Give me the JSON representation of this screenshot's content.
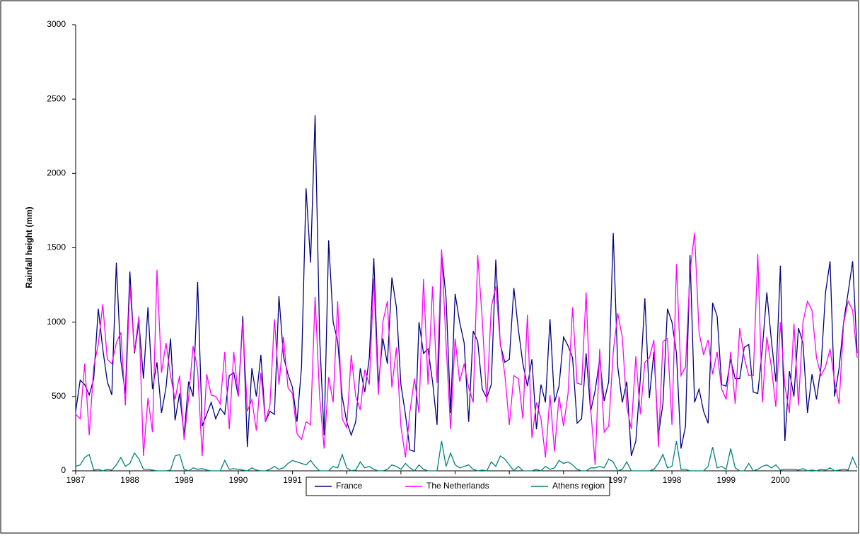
{
  "chart_data": {
    "type": "line",
    "y_label": "Rainfall height  (mm)",
    "categories": [
      "1987",
      null,
      null,
      null,
      null,
      null,
      null,
      null,
      null,
      null,
      null,
      null,
      "1988",
      null,
      null,
      null,
      null,
      null,
      null,
      null,
      null,
      null,
      null,
      null,
      "1989",
      null,
      null,
      null,
      null,
      null,
      null,
      null,
      null,
      null,
      null,
      null,
      "1990",
      null,
      null,
      null,
      null,
      null,
      null,
      null,
      null,
      null,
      null,
      null,
      "1991",
      null,
      null,
      null,
      null,
      null,
      null,
      null,
      null,
      null,
      null,
      null,
      "1992",
      null,
      null,
      null,
      null,
      null,
      null,
      null,
      null,
      null,
      null,
      null,
      "1993",
      null,
      null,
      null,
      null,
      null,
      null,
      null,
      null,
      null,
      null,
      null,
      "1994",
      null,
      null,
      null,
      null,
      null,
      null,
      null,
      null,
      null,
      null,
      null,
      "1995",
      null,
      null,
      null,
      null,
      null,
      null,
      null,
      null,
      null,
      null,
      null,
      "1996",
      null,
      null,
      null,
      null,
      null,
      null,
      null,
      null,
      null,
      null,
      null,
      "1997",
      null,
      null,
      null,
      null,
      null,
      null,
      null,
      null,
      null,
      null,
      null,
      "1998",
      null,
      null,
      null,
      null,
      null,
      null,
      null,
      null,
      null,
      null,
      null,
      "1999",
      null,
      null,
      null,
      null,
      null,
      null,
      null,
      null,
      null,
      null,
      null,
      "2000",
      null,
      null,
      null,
      null,
      null,
      null,
      null,
      null,
      null,
      null,
      null,
      null,
      null,
      null,
      null,
      null,
      null
    ],
    "series": [
      {
        "name": "France",
        "color": "#000080",
        "values": [
          400,
          610,
          580,
          510,
          620,
          1090,
          820,
          600,
          510,
          1400,
          740,
          520,
          1340,
          790,
          1000,
          620,
          1100,
          550,
          730,
          390,
          560,
          890,
          340,
          520,
          240,
          600,
          500,
          1270,
          300,
          380,
          460,
          350,
          420,
          380,
          640,
          660,
          500,
          1040,
          160,
          690,
          500,
          780,
          330,
          400,
          380,
          1175,
          770,
          650,
          560,
          330,
          700,
          1900,
          1400,
          2390,
          900,
          240,
          1550,
          1000,
          870,
          500,
          330,
          240,
          330,
          690,
          530,
          760,
          1430,
          580,
          890,
          720,
          1300,
          1100,
          580,
          380,
          140,
          130,
          1000,
          790,
          820,
          600,
          310,
          1470,
          1160,
          390,
          1190,
          1000,
          860,
          330,
          940,
          870,
          550,
          490,
          580,
          1420,
          850,
          730,
          750,
          1230,
          950,
          720,
          570,
          750,
          280,
          580,
          460,
          1020,
          460,
          570,
          900,
          840,
          760,
          320,
          350,
          790,
          400,
          540,
          750,
          470,
          600,
          1600,
          700,
          460,
          600,
          100,
          200,
          620,
          1160,
          490,
          800,
          240,
          450,
          1090,
          1000,
          790,
          150,
          300,
          1450,
          460,
          550,
          400,
          320,
          1130,
          1040,
          580,
          570,
          750,
          620,
          620,
          830,
          850,
          530,
          520,
          820,
          1200,
          880,
          600,
          1380,
          200,
          670,
          500,
          960,
          860,
          390,
          650,
          480,
          700,
          1200,
          1410,
          500,
          690,
          1000,
          1200,
          1410,
          790
        ]
      },
      {
        "name": "The Netherlands",
        "color": "#ff00ff",
        "values": [
          380,
          350,
          720,
          240,
          700,
          850,
          1120,
          750,
          720,
          860,
          930,
          440,
          1250,
          800,
          1040,
          100,
          490,
          260,
          1350,
          660,
          860,
          640,
          480,
          640,
          210,
          490,
          840,
          680,
          100,
          650,
          510,
          500,
          450,
          800,
          280,
          800,
          500,
          1000,
          400,
          480,
          270,
          660,
          330,
          440,
          1020,
          580,
          900,
          560,
          520,
          250,
          210,
          330,
          310,
          1170,
          500,
          150,
          630,
          460,
          1140,
          350,
          290,
          780,
          500,
          410,
          680,
          580,
          1290,
          510,
          1000,
          1140,
          560,
          830,
          300,
          90,
          400,
          620,
          390,
          1290,
          580,
          1240,
          590,
          1490,
          850,
          280,
          890,
          600,
          720,
          560,
          460,
          1450,
          1020,
          460,
          1100,
          1240,
          860,
          650,
          310,
          640,
          620,
          350,
          1050,
          220,
          460,
          350,
          90,
          510,
          130,
          500,
          300,
          520,
          1100,
          590,
          580,
          1200,
          420,
          40,
          820,
          260,
          300,
          800,
          1060,
          900,
          430,
          280,
          770,
          380,
          730,
          760,
          880,
          160,
          870,
          890,
          310,
          1390,
          640,
          700,
          1340,
          1600,
          930,
          780,
          880,
          650,
          800,
          550,
          480,
          800,
          450,
          960,
          760,
          640,
          640,
          1460,
          460,
          900,
          700,
          430,
          1000,
          570,
          390,
          990,
          440,
          1000,
          1140,
          1080,
          760,
          640,
          700,
          820,
          600,
          450,
          990,
          1140,
          1080,
          760
        ]
      },
      {
        "name": "Athens region",
        "color": "#008080",
        "values": [
          30,
          40,
          90,
          110,
          5,
          10,
          0,
          10,
          5,
          40,
          90,
          30,
          50,
          120,
          80,
          10,
          10,
          5,
          0,
          0,
          0,
          5,
          100,
          110,
          10,
          0,
          20,
          10,
          15,
          5,
          0,
          0,
          0,
          70,
          10,
          15,
          10,
          5,
          0,
          20,
          5,
          0,
          0,
          10,
          30,
          10,
          20,
          50,
          70,
          60,
          50,
          40,
          70,
          30,
          0,
          0,
          0,
          30,
          20,
          110,
          20,
          0,
          5,
          60,
          20,
          30,
          10,
          0,
          0,
          10,
          40,
          30,
          10,
          50,
          20,
          0,
          40,
          10,
          0,
          0,
          0,
          200,
          30,
          120,
          40,
          20,
          30,
          40,
          10,
          0,
          5,
          0,
          60,
          30,
          100,
          80,
          40,
          0,
          30,
          0,
          0,
          0,
          10,
          0,
          30,
          10,
          20,
          70,
          50,
          60,
          40,
          10,
          0,
          0,
          20,
          20,
          30,
          20,
          80,
          60,
          0,
          10,
          60,
          0,
          0,
          0,
          0,
          0,
          10,
          50,
          110,
          20,
          30,
          200,
          10,
          10,
          0,
          0,
          0,
          0,
          30,
          160,
          20,
          30,
          10,
          150,
          20,
          0,
          0,
          50,
          0,
          10,
          30,
          40,
          20,
          40,
          5,
          10,
          10,
          10,
          5,
          15,
          0,
          5,
          0,
          10,
          5,
          20,
          0,
          5,
          10,
          5,
          90,
          20
        ]
      }
    ],
    "ylim": [
      0,
      3000
    ],
    "yticks": [
      0,
      500,
      1000,
      1500,
      2000,
      2500,
      3000
    ],
    "grid": false,
    "legend": "bottom"
  }
}
